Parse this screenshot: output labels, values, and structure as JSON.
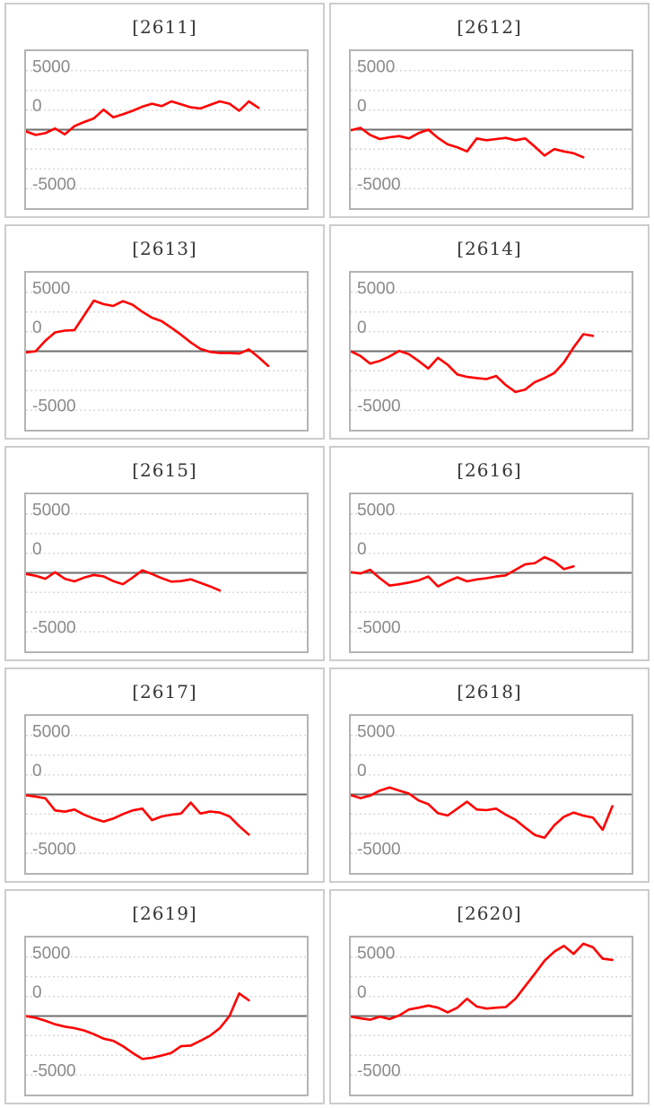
{
  "page": {
    "background": "#ffffff",
    "description": "Grid of ten small-multiple line charts of daily cumulative values for securities 2611-2620"
  },
  "colors": {
    "series_line": "#ff0000",
    "zero_axis_line": "#6e6e6e",
    "gridline": "#d9d9d9",
    "tick_label": "#8a8a8a",
    "title_text": "#363636",
    "panel_border": "#cccccc",
    "plot_border": "#b4b4b4"
  },
  "chart_data": {
    "type": "line",
    "layout": "5 rows x 2 columns of small multiples",
    "grid": "horizontal dotted gridlines, solid dark zero line at center",
    "legend": "none",
    "xlabel": "",
    "ylabel": "",
    "yticks": [
      "5000",
      "0",
      "-5000"
    ],
    "ylim": [
      -6700,
      6700
    ],
    "line_color": "#ff0000",
    "charts": [
      {
        "title": "[2611]",
        "values": [
          -150,
          -450,
          -300,
          100,
          -400,
          300,
          650,
          950,
          1700,
          1050,
          1300,
          1600,
          1950,
          2200,
          2000,
          2400,
          2150,
          1900,
          1800,
          2100,
          2400,
          2200,
          1600,
          2400,
          1850
        ]
      },
      {
        "title": "[2612]",
        "values": [
          -50,
          150,
          -450,
          -800,
          -650,
          -550,
          -750,
          -300,
          0,
          -700,
          -1250,
          -1500,
          -1850,
          -750,
          -900,
          -800,
          -700,
          -900,
          -750,
          -1450,
          -2200,
          -1650,
          -1850,
          -2000,
          -2350
        ]
      },
      {
        "title": "[2613]",
        "values": [
          -100,
          0,
          900,
          1600,
          1750,
          1800,
          3050,
          4300,
          4000,
          3850,
          4250,
          3950,
          3350,
          2850,
          2550,
          2000,
          1400,
          750,
          200,
          -50,
          -150,
          -150,
          -200,
          150,
          -500,
          -1250
        ]
      },
      {
        "title": "[2614]",
        "values": [
          0,
          -400,
          -1050,
          -820,
          -440,
          30,
          -250,
          -820,
          -1460,
          -560,
          -1150,
          -1970,
          -2180,
          -2280,
          -2360,
          -2100,
          -2870,
          -3460,
          -3250,
          -2620,
          -2280,
          -1850,
          -950,
          330,
          1450,
          1300
        ]
      },
      {
        "title": "[2615]",
        "values": [
          -100,
          -250,
          -500,
          50,
          -500,
          -720,
          -400,
          -180,
          -300,
          -700,
          -970,
          -400,
          210,
          -100,
          -450,
          -750,
          -700,
          -550,
          -850,
          -1150,
          -1500
        ]
      },
      {
        "title": "[2616]",
        "values": [
          50,
          -50,
          260,
          -460,
          -1080,
          -970,
          -820,
          -640,
          -310,
          -1150,
          -720,
          -380,
          -720,
          -560,
          -460,
          -310,
          -210,
          260,
          720,
          820,
          1330,
          970,
          310,
          560
        ]
      },
      {
        "title": "[2617]",
        "values": [
          -80,
          -180,
          -330,
          -1360,
          -1460,
          -1280,
          -1720,
          -2050,
          -2300,
          -2050,
          -1670,
          -1360,
          -1200,
          -2180,
          -1870,
          -1720,
          -1620,
          -690,
          -1620,
          -1450,
          -1540,
          -1870,
          -2690,
          -3410
        ]
      },
      {
        "title": "[2618]",
        "values": [
          -50,
          -310,
          -100,
          330,
          590,
          330,
          80,
          -510,
          -820,
          -1590,
          -1790,
          -1200,
          -620,
          -1280,
          -1330,
          -1200,
          -1720,
          -2150,
          -2820,
          -3440,
          -3670,
          -2620,
          -1900,
          -1540,
          -1800,
          -1970,
          -3000,
          -1000
        ]
      },
      {
        "title": "[2619]",
        "values": [
          0,
          -150,
          -400,
          -700,
          -900,
          -1030,
          -1230,
          -1540,
          -1920,
          -2100,
          -2560,
          -3130,
          -3640,
          -3540,
          -3350,
          -3130,
          -2560,
          -2510,
          -2100,
          -1670,
          -1030,
          0,
          1920,
          1330
        ]
      },
      {
        "title": "[2620]",
        "values": [
          -50,
          -200,
          -310,
          -50,
          -260,
          50,
          560,
          710,
          890,
          710,
          310,
          710,
          1470,
          810,
          630,
          710,
          760,
          1470,
          2540,
          3600,
          4700,
          5460,
          5960,
          5280,
          6140,
          5840,
          4870,
          4770
        ]
      }
    ]
  }
}
